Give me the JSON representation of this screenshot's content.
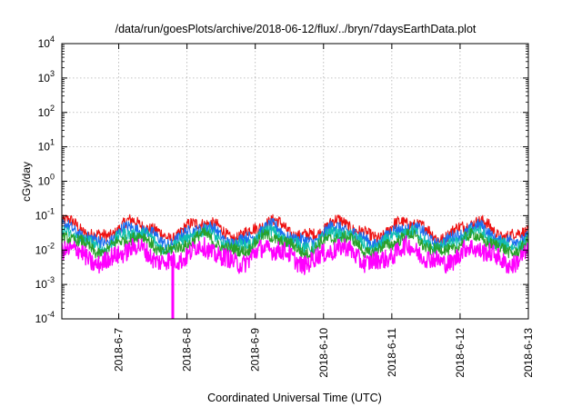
{
  "chart_data": {
    "type": "line",
    "title": "/data/run/goesPlots/archive/2018-06-12/flux/../bryn/7daysEarthData.plot",
    "xlabel": "Coordinated Universal Time (UTC)",
    "ylabel": "cGy/day",
    "y_scale": "log",
    "ylim": [
      0.0001,
      10000
    ],
    "xlim": [
      "2018-06-06 04:00",
      "2018-06-13 00:00"
    ],
    "grid": true,
    "x_ticks": [
      {
        "date": "2018-06-07",
        "label": "2018-6-7"
      },
      {
        "date": "2018-06-08",
        "label": "2018-6-8"
      },
      {
        "date": "2018-06-09",
        "label": "2018-6-9"
      },
      {
        "date": "2018-06-10",
        "label": "2018-6-10"
      },
      {
        "date": "2018-06-11",
        "label": "2018-6-11"
      },
      {
        "date": "2018-06-12",
        "label": "2018-6-12"
      },
      {
        "date": "2018-06-13",
        "label": "2018-6-13"
      }
    ],
    "y_ticks": [
      {
        "value": 0.0001,
        "base": "10",
        "exp": "-4"
      },
      {
        "value": 0.001,
        "base": "10",
        "exp": "-3"
      },
      {
        "value": 0.01,
        "base": "10",
        "exp": "-2"
      },
      {
        "value": 0.1,
        "base": "10",
        "exp": "-1"
      },
      {
        "value": 1,
        "base": "10",
        "exp": "0"
      },
      {
        "value": 10,
        "base": "10",
        "exp": "1"
      },
      {
        "value": 100,
        "base": "10",
        "exp": "2"
      },
      {
        "value": 1000,
        "base": "10",
        "exp": "3"
      },
      {
        "value": 10000,
        "base": "10",
        "exp": "4"
      }
    ],
    "series": [
      {
        "color": "#ee1111",
        "approx_level": 0.04
      },
      {
        "color": "#1a6ef0",
        "approx_level": 0.028
      },
      {
        "color": "#11c0b0",
        "approx_level": 0.02
      },
      {
        "color": "#2aa02a",
        "approx_level": 0.015
      },
      {
        "color": "#ff00ff",
        "approx_level": 0.007
      }
    ],
    "annotations": [
      {
        "description": "dropout spike in magenta series",
        "date": "2018-06-07 19:00",
        "value": 0.0001
      }
    ]
  }
}
